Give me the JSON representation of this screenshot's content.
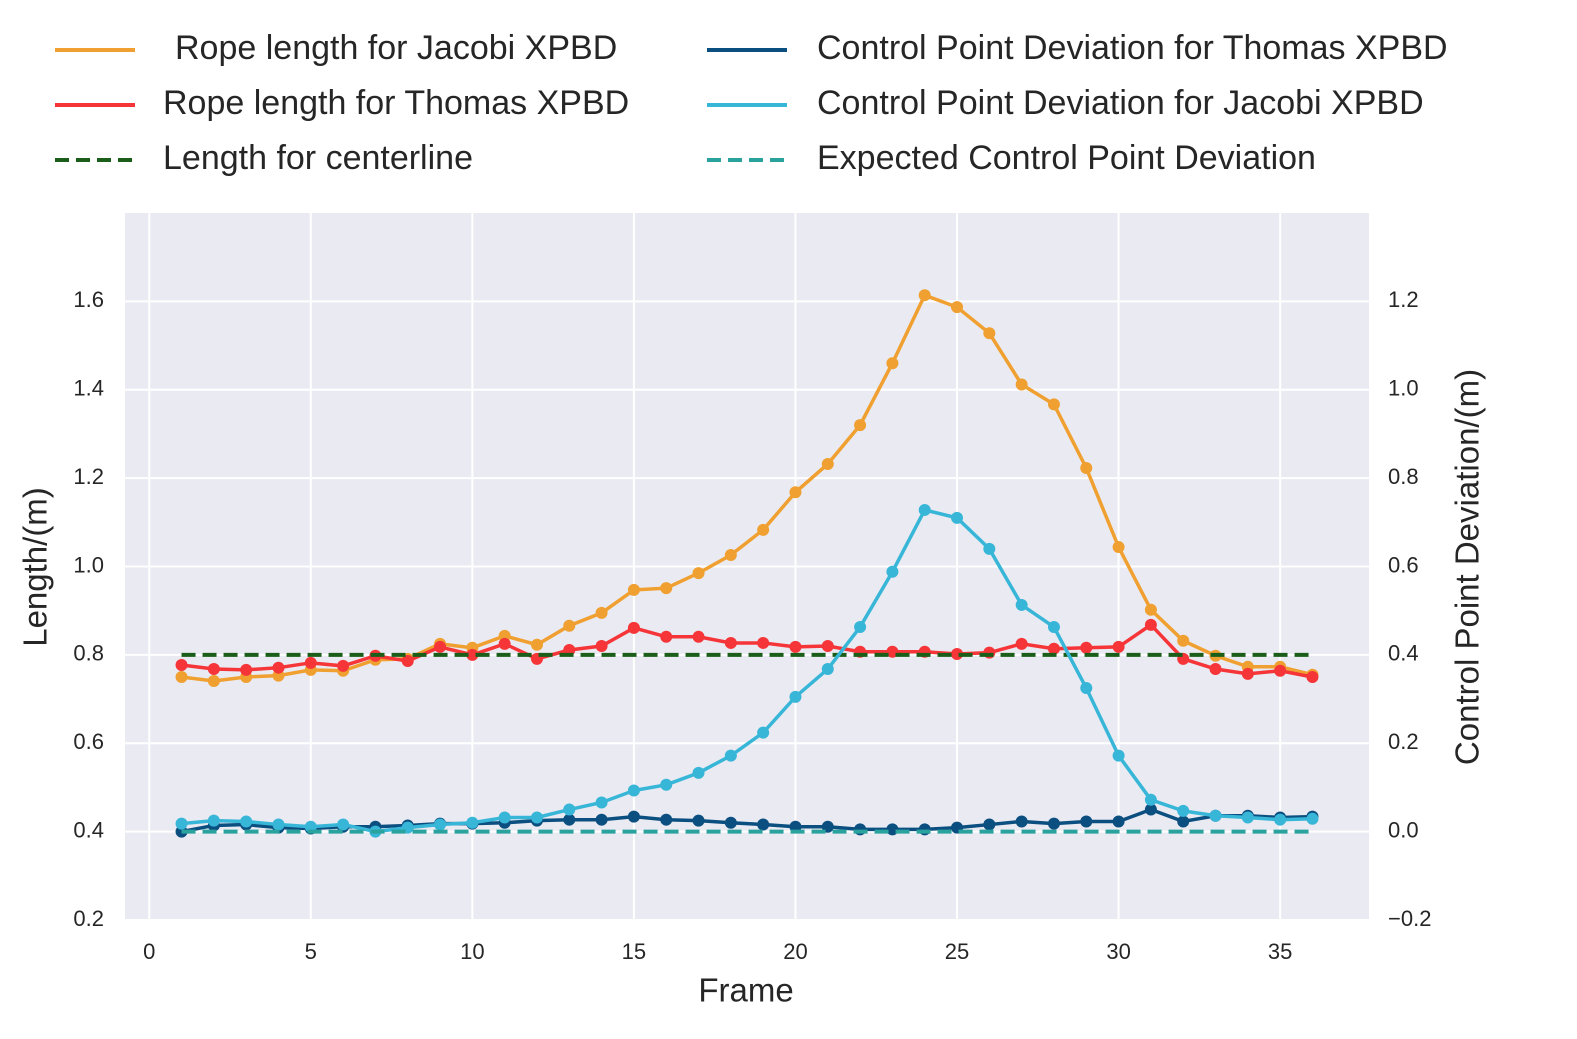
{
  "chart_data": {
    "type": "line",
    "xlabel": "Frame",
    "ylabel": "Length/(m)",
    "y2label": "Control Point Deviation/(m)",
    "x": [
      1,
      2,
      3,
      4,
      5,
      6,
      7,
      8,
      9,
      10,
      11,
      12,
      13,
      14,
      15,
      16,
      17,
      18,
      19,
      20,
      21,
      22,
      23,
      24,
      25,
      26,
      27,
      28,
      29,
      30,
      31,
      32,
      33,
      34,
      35,
      36
    ],
    "series": [
      {
        "name": "Rope length for Jacobi XPBD",
        "color": "#f0a030",
        "marker": true,
        "linestyle": "solid",
        "values": [
          0.75,
          0.741,
          0.75,
          0.753,
          0.766,
          0.764,
          0.789,
          0.791,
          0.825,
          0.816,
          0.843,
          0.823,
          0.866,
          0.895,
          0.947,
          0.951,
          0.985,
          1.026,
          1.083,
          1.168,
          1.232,
          1.32,
          1.46,
          1.614,
          1.587,
          1.528,
          1.412,
          1.367,
          1.223,
          1.044,
          0.902,
          0.832,
          0.798,
          0.773,
          0.773,
          0.755
        ]
      },
      {
        "name": "Rope length for Thomas XPBD",
        "color": "#f53538",
        "marker": true,
        "linestyle": "solid",
        "values": [
          0.777,
          0.768,
          0.766,
          0.771,
          0.782,
          0.775,
          0.798,
          0.786,
          0.818,
          0.8,
          0.825,
          0.791,
          0.811,
          0.82,
          0.861,
          0.841,
          0.841,
          0.827,
          0.827,
          0.818,
          0.82,
          0.807,
          0.807,
          0.807,
          0.802,
          0.805,
          0.825,
          0.814,
          0.816,
          0.818,
          0.868,
          0.791,
          0.768,
          0.757,
          0.764,
          0.75
        ]
      },
      {
        "name": "Length for centerline",
        "color": "#1a5e1a",
        "marker": false,
        "linestyle": "dashed",
        "values": [
          0.8,
          0.8,
          0.8,
          0.8,
          0.8,
          0.8,
          0.8,
          0.8,
          0.8,
          0.8,
          0.8,
          0.8,
          0.8,
          0.8,
          0.8,
          0.8,
          0.8,
          0.8,
          0.8,
          0.8,
          0.8,
          0.8,
          0.8,
          0.8,
          0.8,
          0.8,
          0.8,
          0.8,
          0.8,
          0.8,
          0.8,
          0.8,
          0.8,
          0.8,
          0.8,
          0.8
        ]
      },
      {
        "name": "Control Point Deviation for Thomas XPBD",
        "color": "#0b4f80",
        "marker": true,
        "linestyle": "solid",
        "axis": "y2",
        "values": [
          0.0,
          0.014,
          0.016,
          0.009,
          0.007,
          0.011,
          0.011,
          0.014,
          0.018,
          0.018,
          0.02,
          0.025,
          0.027,
          0.027,
          0.034,
          0.027,
          0.025,
          0.02,
          0.016,
          0.011,
          0.011,
          0.005,
          0.005,
          0.005,
          0.009,
          0.016,
          0.023,
          0.018,
          0.023,
          0.023,
          0.05,
          0.023,
          0.036,
          0.036,
          0.032,
          0.034
        ]
      },
      {
        "name": "Control Point Deviation for Jacobi XPBD",
        "color": "#38b6d8",
        "marker": true,
        "linestyle": "solid",
        "axis": "y2",
        "values": [
          0.018,
          0.025,
          0.023,
          0.016,
          0.011,
          0.016,
          0.0,
          0.009,
          0.016,
          0.02,
          0.032,
          0.032,
          0.05,
          0.066,
          0.093,
          0.106,
          0.133,
          0.172,
          0.224,
          0.305,
          0.368,
          0.463,
          0.588,
          0.728,
          0.71,
          0.64,
          0.513,
          0.463,
          0.325,
          0.172,
          0.072,
          0.047,
          0.036,
          0.032,
          0.027,
          0.029
        ]
      },
      {
        "name": "Expected Control Point Deviation",
        "color": "#2aa39e",
        "marker": false,
        "linestyle": "dashed",
        "axis": "y2",
        "values": [
          0,
          0,
          0,
          0,
          0,
          0,
          0,
          0,
          0,
          0,
          0,
          0,
          0,
          0,
          0,
          0,
          0,
          0,
          0,
          0,
          0,
          0,
          0,
          0,
          0,
          0,
          0,
          0,
          0,
          0,
          0,
          0,
          0,
          0,
          0,
          0
        ]
      }
    ],
    "xlim": [
      -0.75,
      37.75
    ],
    "xticks": [
      0,
      5,
      10,
      15,
      20,
      25,
      30,
      35
    ],
    "ylim": [
      0.2,
      1.8
    ],
    "yticks": [
      0.2,
      0.4,
      0.6,
      0.8,
      {
        "value": 1,
        "label": "1.0"
      },
      1.2,
      1.4,
      1.6
    ],
    "y2lim": [
      -0.2,
      1.4
    ],
    "y2ticks": [
      {
        "value": -0.2,
        "label": "−0.2"
      },
      {
        "value": 0,
        "label": "0.0"
      },
      0.2,
      0.4,
      0.6,
      0.8,
      {
        "value": 1,
        "label": "1.0"
      },
      1.2
    ],
    "grid": true,
    "legend": "top"
  }
}
